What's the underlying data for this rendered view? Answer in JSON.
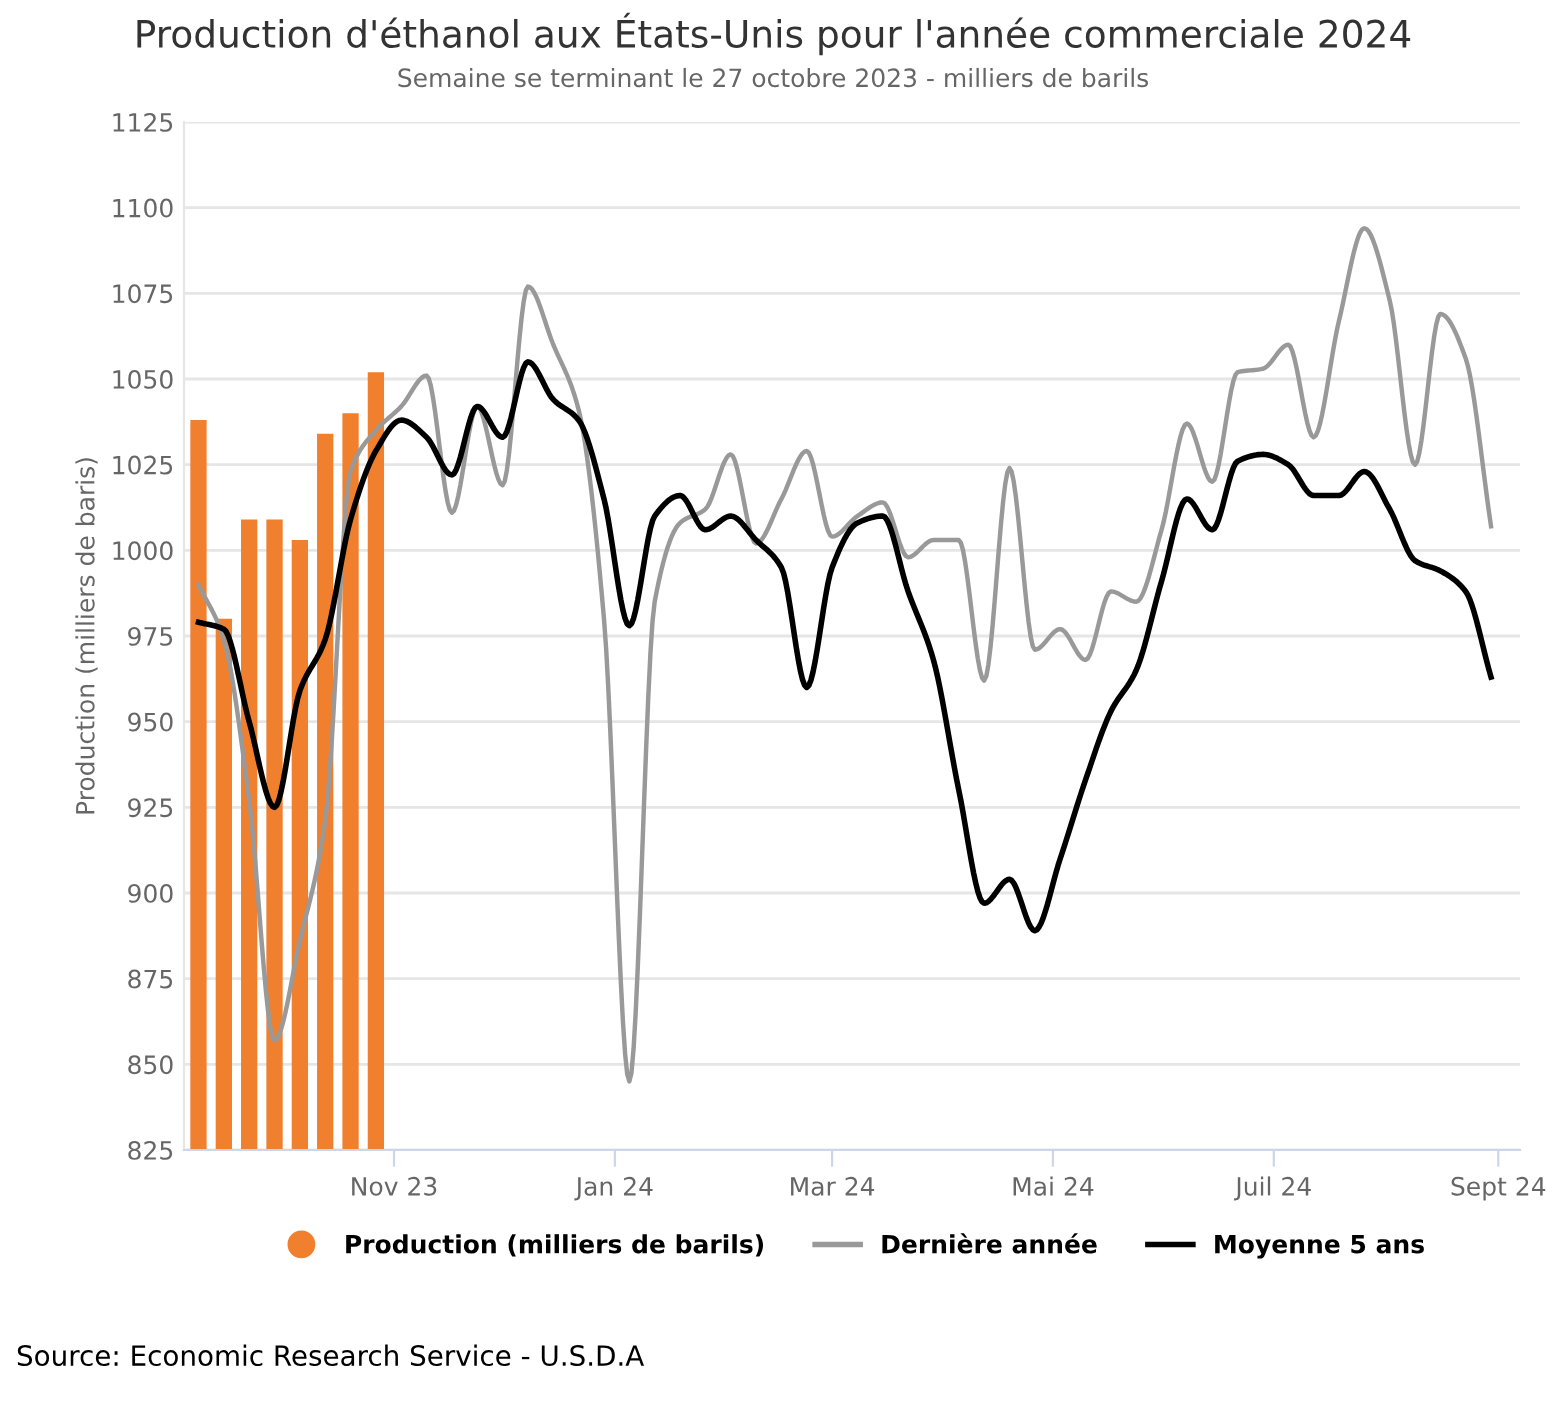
{
  "chart_data": {
    "type": "line",
    "title": "Production d'éthanol aux États-Unis pour l'année commerciale 2024",
    "subtitle": "Semaine se terminant le 27 octobre 2023 - milliers de barils",
    "ylabel": "Production (milliers de baris)",
    "x": [
      "2023-09-08",
      "2023-09-15",
      "2023-09-22",
      "2023-09-29",
      "2023-10-06",
      "2023-10-13",
      "2023-10-20",
      "2023-10-27",
      "2023-11-03",
      "2023-11-10",
      "2023-11-17",
      "2023-11-24",
      "2023-12-01",
      "2023-12-08",
      "2023-12-15",
      "2023-12-22",
      "2023-12-29",
      "2024-01-05",
      "2024-01-12",
      "2024-01-19",
      "2024-01-26",
      "2024-02-02",
      "2024-02-09",
      "2024-02-16",
      "2024-02-23",
      "2024-03-01",
      "2024-03-08",
      "2024-03-15",
      "2024-03-22",
      "2024-03-29",
      "2024-04-05",
      "2024-04-12",
      "2024-04-19",
      "2024-04-26",
      "2024-05-03",
      "2024-05-10",
      "2024-05-17",
      "2024-05-24",
      "2024-05-31",
      "2024-06-07",
      "2024-06-14",
      "2024-06-21",
      "2024-06-28",
      "2024-07-05",
      "2024-07-12",
      "2024-07-19",
      "2024-07-26",
      "2024-08-02",
      "2024-08-09",
      "2024-08-16",
      "2024-08-23",
      "2024-08-30"
    ],
    "series": [
      {
        "name": "Production (milliers de barils)",
        "type": "bar",
        "color": "#f07f2e",
        "x": [
          "2023-09-08",
          "2023-09-15",
          "2023-09-22",
          "2023-09-29",
          "2023-10-06",
          "2023-10-13",
          "2023-10-20",
          "2023-10-27"
        ],
        "values": [
          1038,
          980,
          1009,
          1009,
          1003,
          1034,
          1040,
          1052
        ]
      },
      {
        "name": "Dernière année",
        "color": "#999999",
        "values": [
          990,
          974,
          927,
          857,
          886,
          921,
          1023,
          1035,
          1042,
          1051,
          1011,
          1042,
          1019,
          1077,
          1060,
          1041,
          980,
          845,
          985,
          1008,
          1012,
          1028,
          1002,
          1015,
          1029,
          1004,
          1010,
          1014,
          998,
          1003,
          1003,
          962,
          1024,
          971,
          977,
          968,
          988,
          985,
          1006,
          1037,
          1020,
          1052,
          1053,
          1060,
          1033,
          1067,
          1094,
          1073,
          1025,
          1069,
          1056,
          1007
        ]
      },
      {
        "name": "Moyenne 5 ans",
        "color": "#000000",
        "values": [
          979,
          977,
          950,
          925,
          959,
          974,
          1009,
          1029,
          1038,
          1033,
          1022,
          1042,
          1033,
          1055,
          1044,
          1038,
          1015,
          978,
          1010,
          1016,
          1006,
          1010,
          1003,
          995,
          960,
          995,
          1008,
          1010,
          988,
          968,
          930,
          897,
          904,
          889,
          910,
          933,
          953,
          965,
          991,
          1015,
          1006,
          1026,
          1028,
          1025,
          1016,
          1016,
          1023,
          1012,
          997,
          994,
          988,
          963
        ]
      }
    ],
    "xlim": [
      "2023-09-04",
      "2024-09-07"
    ],
    "xticks": [
      {
        "value": "2023-11-01",
        "label": "Nov 23"
      },
      {
        "value": "2024-01-01",
        "label": "Jan 24"
      },
      {
        "value": "2024-03-01",
        "label": "Mar 24"
      },
      {
        "value": "2024-05-01",
        "label": "Mai 24"
      },
      {
        "value": "2024-07-01",
        "label": "Juil 24"
      },
      {
        "value": "2024-09-01",
        "label": "Sept 24"
      }
    ],
    "ylim": [
      825,
      1125
    ],
    "yticks": [
      825,
      850,
      875,
      900,
      925,
      950,
      975,
      1000,
      1025,
      1050,
      1075,
      1100,
      1125
    ],
    "grid": "y",
    "legend": "bottom",
    "annotations": [
      "Source: Economic Research Service - U.S.D.A"
    ]
  }
}
